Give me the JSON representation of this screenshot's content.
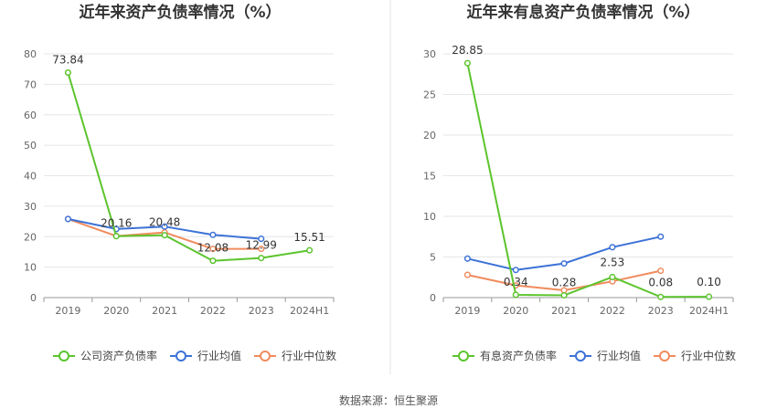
{
  "colors": {
    "company": "#5cc42d",
    "industry_avg": "#3c72d6",
    "industry_median": "#f08b5d",
    "grid": "#e6e6e6",
    "axis": "#999999",
    "divider": "#e5e5e5"
  },
  "source_text": "数据来源：恒生聚源",
  "chart_data": [
    {
      "type": "line",
      "title": "近年来资产负债率情况（%）",
      "categories": [
        "2019",
        "2020",
        "2021",
        "2022",
        "2023",
        "2024H1"
      ],
      "ylim": [
        0,
        80
      ],
      "yticks": [
        "0",
        "10",
        "20",
        "30",
        "40",
        "50",
        "60",
        "70",
        "80"
      ],
      "grid": true,
      "legend_position": "bottom",
      "series": [
        {
          "name": "公司资产负债率",
          "color_key": "company",
          "values": [
            73.84,
            20.16,
            20.48,
            12.08,
            12.99,
            15.51
          ],
          "labels": [
            "73.84",
            "20.16",
            "20.48",
            "12.08",
            "12.99",
            "15.51"
          ]
        },
        {
          "name": "行业均值",
          "color_key": "industry_avg",
          "values": [
            25.8,
            22.5,
            23.3,
            20.6,
            19.3,
            null
          ],
          "labels": []
        },
        {
          "name": "行业中位数",
          "color_key": "industry_median",
          "values": [
            25.8,
            20.2,
            21.4,
            16.0,
            16.0,
            null
          ],
          "labels": []
        }
      ]
    },
    {
      "type": "line",
      "title": "近年来有息资产负债率情况（%）",
      "categories": [
        "2019",
        "2020",
        "2021",
        "2022",
        "2023",
        "2024H1"
      ],
      "ylim": [
        0,
        30
      ],
      "yticks": [
        "0",
        "5",
        "10",
        "15",
        "20",
        "25",
        "30"
      ],
      "grid": true,
      "legend_position": "bottom",
      "series": [
        {
          "name": "有息资产负债率",
          "color_key": "company",
          "values": [
            28.85,
            0.34,
            0.28,
            2.53,
            0.08,
            0.1
          ],
          "labels": [
            "28.85",
            "0.34",
            "0.28",
            "2.53",
            "0.08",
            "0.10"
          ]
        },
        {
          "name": "行业均值",
          "color_key": "industry_avg",
          "values": [
            4.8,
            3.4,
            4.2,
            6.2,
            7.5,
            null
          ],
          "labels": []
        },
        {
          "name": "行业中位数",
          "color_key": "industry_median",
          "values": [
            2.8,
            1.5,
            0.9,
            2.0,
            3.3,
            null
          ],
          "labels": []
        }
      ]
    }
  ]
}
